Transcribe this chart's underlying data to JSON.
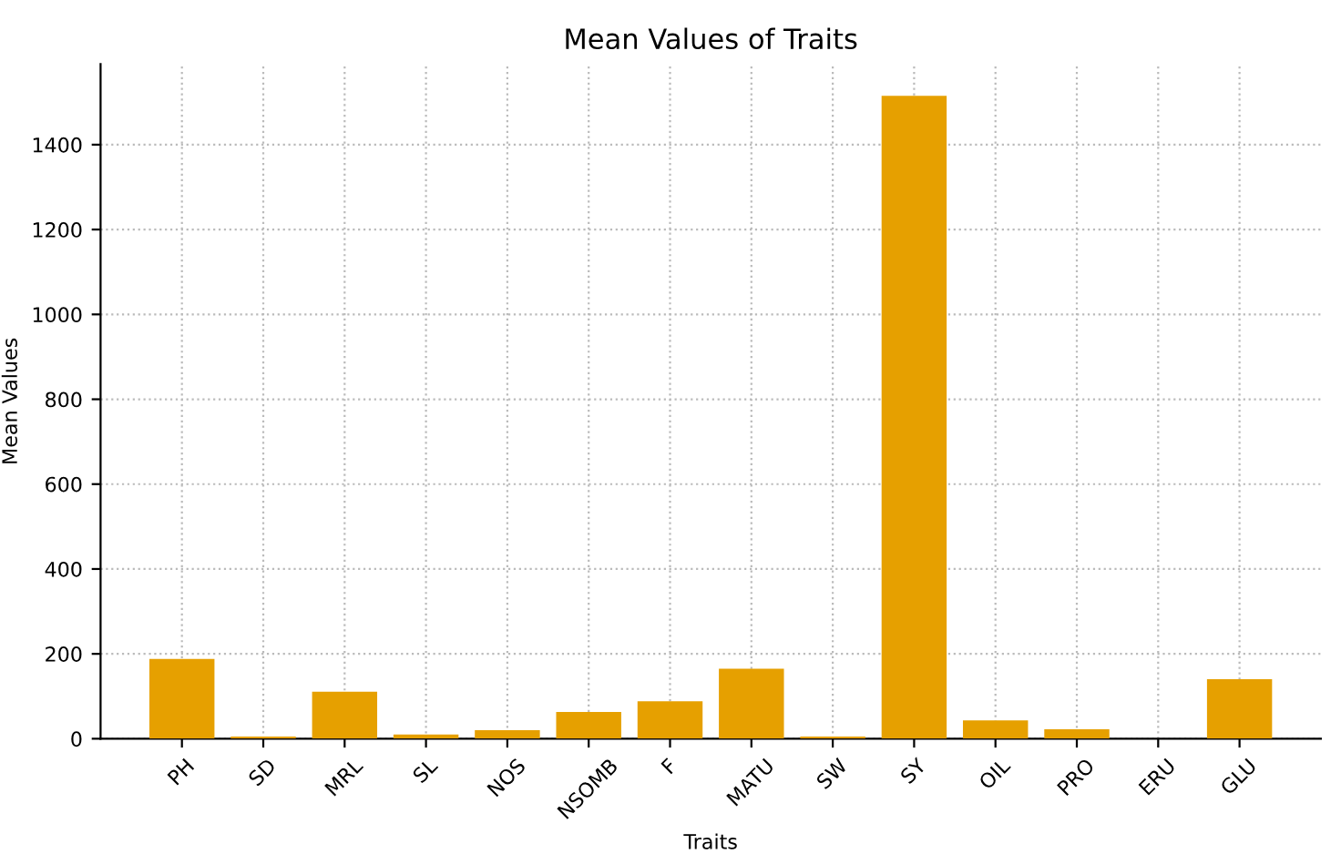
{
  "chart_data": {
    "type": "bar",
    "title": "Mean Values of Traits",
    "xlabel": "Traits",
    "ylabel": "Mean Values",
    "categories": [
      "PH",
      "SD",
      "MRL",
      "SL",
      "NOS",
      "NSOMB",
      "F",
      "MATU",
      "SW",
      "SY",
      "OIL",
      "PRO",
      "ERU",
      "GLU"
    ],
    "values": [
      188,
      5,
      111,
      10,
      20,
      63,
      88,
      165,
      5,
      1515,
      43,
      22,
      0,
      140
    ],
    "color": "#e6a000",
    "ylim": [
      0,
      1590
    ],
    "yticks": [
      0,
      200,
      400,
      600,
      800,
      1000,
      1200,
      1400
    ],
    "grid": true
  }
}
